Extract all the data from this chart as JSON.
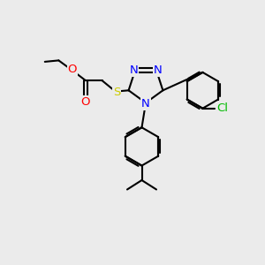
{
  "background_color": "#ebebeb",
  "atom_colors": {
    "N": "#0000ff",
    "O": "#ff0000",
    "S": "#cccc00",
    "Cl": "#00bb00",
    "C": "#000000"
  },
  "bond_color": "#000000",
  "bond_width": 1.5,
  "font_size": 9.5
}
